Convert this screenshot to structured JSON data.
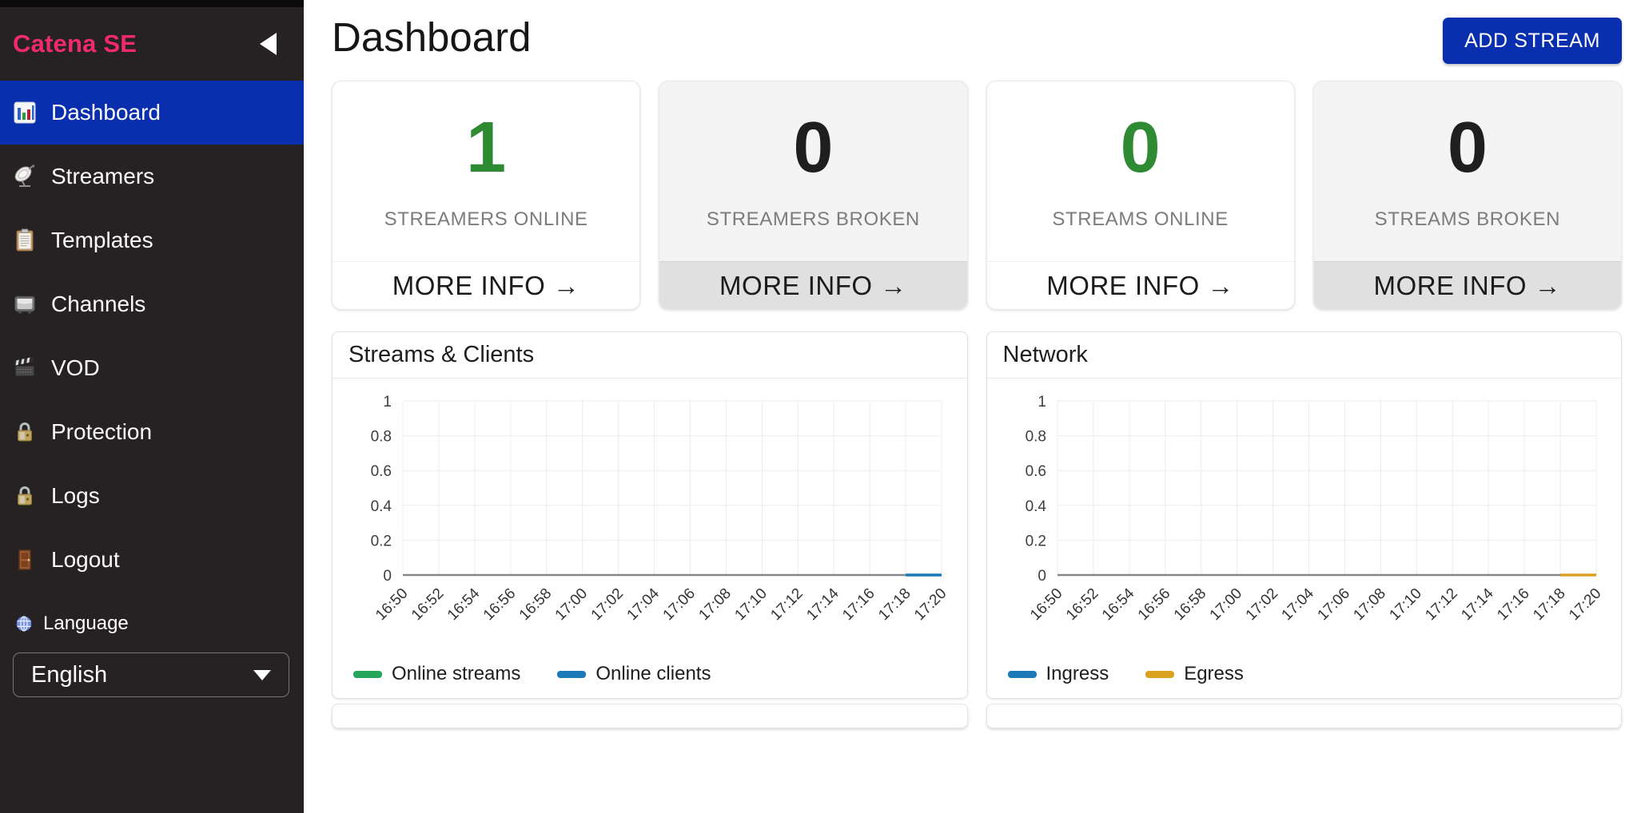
{
  "sidebar": {
    "brand": "Catena SE",
    "items": [
      {
        "label": "Dashboard",
        "icon": "bar-chart",
        "active": true
      },
      {
        "label": "Streamers",
        "icon": "satellite-dish",
        "active": false
      },
      {
        "label": "Templates",
        "icon": "clipboard",
        "active": false
      },
      {
        "label": "Channels",
        "icon": "tv",
        "active": false
      },
      {
        "label": "VOD",
        "icon": "clapperboard",
        "active": false
      },
      {
        "label": "Protection",
        "icon": "padlock",
        "active": false
      },
      {
        "label": "Logs",
        "icon": "padlock",
        "active": false
      },
      {
        "label": "Logout",
        "icon": "door",
        "active": false
      }
    ],
    "language": {
      "label": "Language",
      "icon": "globe",
      "selected": "English"
    }
  },
  "header": {
    "title": "Dashboard",
    "add_stream_label": "ADD STREAM"
  },
  "stats": [
    {
      "value": "1",
      "value_color": "#2e8b33",
      "label": "STREAMERS ONLINE",
      "more_info": "MORE INFO →",
      "variant": "white"
    },
    {
      "value": "0",
      "value_color": "#1f1f1f",
      "label": "STREAMERS BROKEN",
      "more_info": "MORE INFO →",
      "variant": "gray"
    },
    {
      "value": "0",
      "value_color": "#2e8b33",
      "label": "STREAMS ONLINE",
      "more_info": "MORE INFO →",
      "variant": "white"
    },
    {
      "value": "0",
      "value_color": "#1f1f1f",
      "label": "STREAMS BROKEN",
      "more_info": "MORE INFO →",
      "variant": "gray"
    }
  ],
  "colors": {
    "accent_blue": "#0a2fae",
    "brand_pink": "#f02a6e",
    "sidebar_bg": "#262223",
    "stat_green": "#2e8b33",
    "chart_green": "#26a65b",
    "chart_blue": "#1d7ab8",
    "chart_orange": "#dba21f"
  },
  "chart_data": [
    {
      "type": "line",
      "title": "Streams & Clients",
      "x": [
        "16:50",
        "16:52",
        "16:54",
        "16:56",
        "16:58",
        "17:00",
        "17:02",
        "17:04",
        "17:06",
        "17:08",
        "17:10",
        "17:12",
        "17:14",
        "17:16",
        "17:18",
        "17:20"
      ],
      "ylim": [
        0,
        1
      ],
      "yticks": [
        0,
        0.2,
        0.4,
        0.6,
        0.8,
        1
      ],
      "grid": true,
      "legend_position": "bottom",
      "series": [
        {
          "name": "Online streams",
          "color": "#26a65b",
          "values": [
            null,
            null,
            null,
            null,
            null,
            null,
            null,
            null,
            null,
            null,
            null,
            null,
            null,
            null,
            null,
            null
          ]
        },
        {
          "name": "Online clients",
          "color": "#1d7ab8",
          "values": [
            null,
            null,
            null,
            null,
            null,
            null,
            null,
            null,
            null,
            null,
            null,
            null,
            null,
            null,
            0,
            0
          ]
        }
      ]
    },
    {
      "type": "line",
      "title": "Network",
      "x": [
        "16:50",
        "16:52",
        "16:54",
        "16:56",
        "16:58",
        "17:00",
        "17:02",
        "17:04",
        "17:06",
        "17:08",
        "17:10",
        "17:12",
        "17:14",
        "17:16",
        "17:18",
        "17:20"
      ],
      "ylim": [
        0,
        1
      ],
      "yticks": [
        0,
        0.2,
        0.4,
        0.6,
        0.8,
        1
      ],
      "grid": true,
      "legend_position": "bottom",
      "series": [
        {
          "name": "Ingress",
          "color": "#1d7ab8",
          "values": [
            null,
            null,
            null,
            null,
            null,
            null,
            null,
            null,
            null,
            null,
            null,
            null,
            null,
            null,
            null,
            null
          ]
        },
        {
          "name": "Egress",
          "color": "#dba21f",
          "values": [
            null,
            null,
            null,
            null,
            null,
            null,
            null,
            null,
            null,
            null,
            null,
            null,
            null,
            null,
            0,
            0
          ]
        }
      ]
    }
  ]
}
